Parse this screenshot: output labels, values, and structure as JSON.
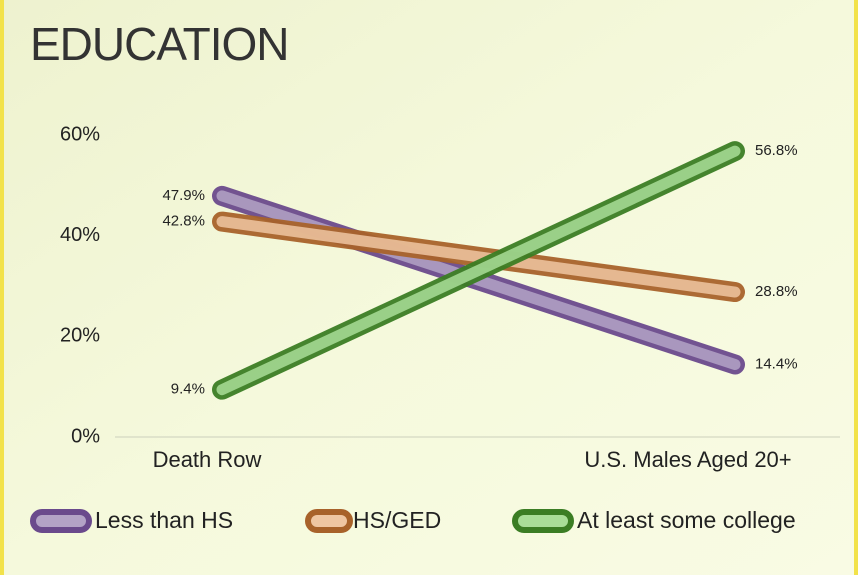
{
  "chart_data": {
    "type": "line",
    "title": "EDUCATION",
    "categories": [
      "Death Row",
      "U.S. Males Aged 20+"
    ],
    "series": [
      {
        "name": "Less than HS",
        "color": "#6a4a8c",
        "fill": "#b3a3c6",
        "values": [
          47.9,
          14.4
        ],
        "value_labels": [
          "47.9%",
          "14.4%"
        ]
      },
      {
        "name": "HS/GED",
        "color": "#a8622a",
        "fill": "#efc6a2",
        "values": [
          42.8,
          28.8
        ],
        "value_labels": [
          "42.8%",
          "28.8%"
        ]
      },
      {
        "name": "At least some college",
        "color": "#3b7d24",
        "fill": "#a9dd98",
        "values": [
          9.4,
          56.8
        ],
        "value_labels": [
          "9.4%",
          "56.8%"
        ]
      }
    ],
    "ylim": [
      0,
      60
    ],
    "yticks": [
      {
        "value": 0,
        "label": "0%"
      },
      {
        "value": 20,
        "label": "20%"
      },
      {
        "value": 40,
        "label": "40%"
      },
      {
        "value": 60,
        "label": "60%"
      }
    ],
    "legend": "bottom"
  }
}
